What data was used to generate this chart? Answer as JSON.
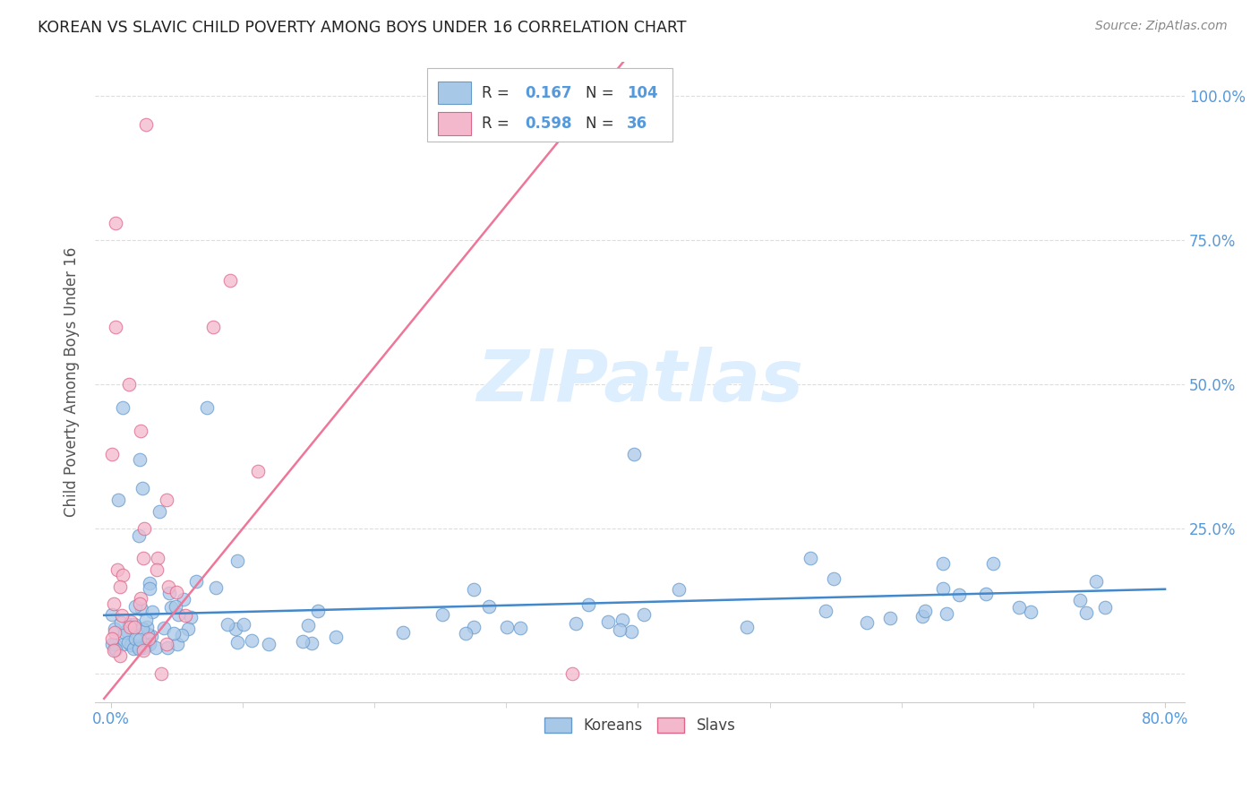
{
  "title": "KOREAN VS SLAVIC CHILD POVERTY AMONG BOYS UNDER 16 CORRELATION CHART",
  "source": "Source: ZipAtlas.com",
  "ylabel": "Child Poverty Among Boys Under 16",
  "korean_R": 0.167,
  "korean_N": 104,
  "slavic_R": 0.598,
  "slavic_N": 36,
  "korean_color": "#a8c8e8",
  "slavic_color": "#f4b8cc",
  "korean_edge_color": "#6699cc",
  "slavic_edge_color": "#dd6688",
  "korean_line_color": "#4488cc",
  "slavic_line_color": "#ee7799",
  "axis_tick_color": "#5599dd",
  "title_color": "#222222",
  "source_color": "#888888",
  "watermark_color": "#ddeeff",
  "grid_color": "#dddddd",
  "spine_color": "#cccccc"
}
